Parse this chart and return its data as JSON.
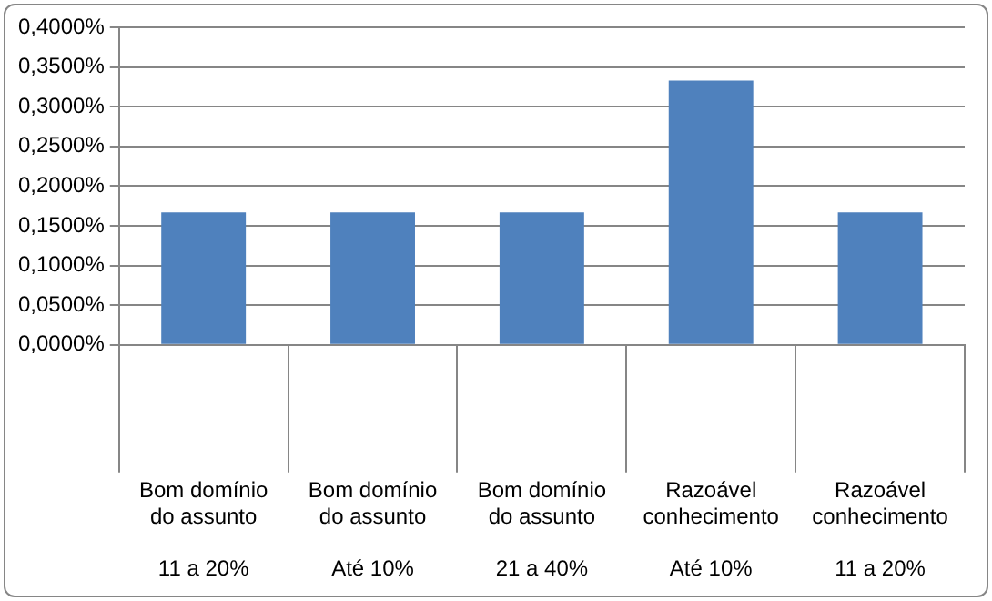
{
  "chart_data": {
    "type": "bar",
    "categories": [
      "Bom domínio do assunto\n11 a 20%",
      "Bom domínio do assunto\nAté 10%",
      "Bom domínio do assunto\n21 a 40%",
      "Razoável conhecimento\nAté 10%",
      "Razoável conhecimento\n11 a 20%"
    ],
    "values": [
      0.167,
      0.167,
      0.167,
      0.333,
      0.167
    ],
    "color": "#4f81bd",
    "ylim": [
      0,
      0.4
    ],
    "yticks": [
      {
        "value": 0,
        "label": "0,0000%"
      },
      {
        "value": 0.05,
        "label": "0,0500%"
      },
      {
        "value": 0.1,
        "label": "0,1000%"
      },
      {
        "value": 0.15,
        "label": "0,1500%"
      },
      {
        "value": 0.2,
        "label": "0,2000%"
      },
      {
        "value": 0.25,
        "label": "0,2500%"
      },
      {
        "value": 0.3,
        "label": "0,3000%"
      },
      {
        "value": 0.35,
        "label": "0,3500%"
      },
      {
        "value": 0.4,
        "label": "0,4000%"
      }
    ],
    "grid": "y",
    "legend": false
  }
}
